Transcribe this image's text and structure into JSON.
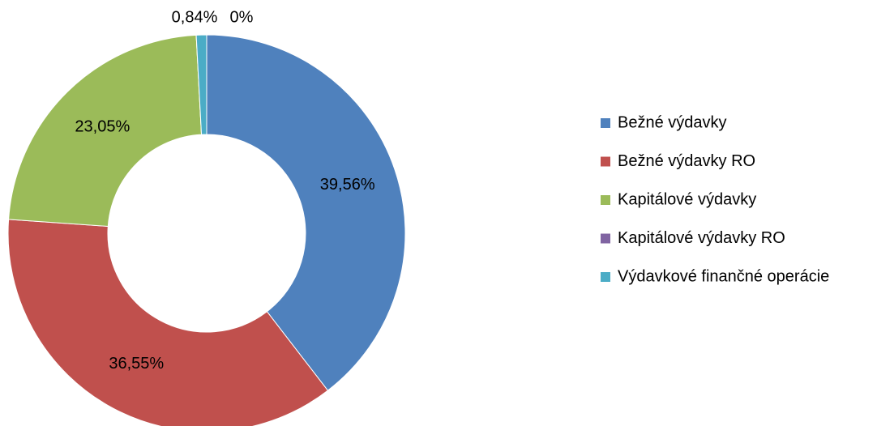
{
  "chart_data": {
    "type": "donut",
    "categories": [
      "Bežné výdavky",
      "Bežné výdavky RO",
      "Kapitálové výdavky",
      "Kapitálové výdavky RO",
      "Výdavkové finančné operácie"
    ],
    "values": [
      39.56,
      36.55,
      23.05,
      0,
      0.84
    ],
    "value_labels": [
      "39,56%",
      "36,55%",
      "23,05%",
      "0%",
      "0,84%"
    ],
    "colors": [
      "#4f81bd",
      "#c0504d",
      "#9bbb59",
      "#8064a2",
      "#4bacc6"
    ],
    "legend": "right"
  }
}
